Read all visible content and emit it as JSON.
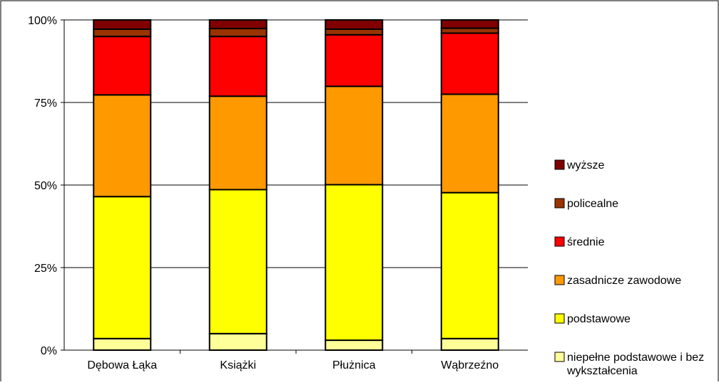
{
  "chart_data": {
    "type": "bar",
    "stacked": true,
    "percent": true,
    "categories": [
      "Dębowa Łąka",
      "Książki",
      "Płużnica",
      "Wąbrzeźno"
    ],
    "y_ticks": [
      "0%",
      "25%",
      "50%",
      "75%",
      "100%"
    ],
    "ylim": [
      0,
      100
    ],
    "grid": true,
    "legend_position": "right",
    "series": [
      {
        "name": "niepełne podstawowe i bez wykształcenia",
        "color": "#ffff99",
        "values": [
          3.5,
          5.0,
          3.0,
          3.5
        ]
      },
      {
        "name": "podstawowe",
        "color": "#ffff00",
        "values": [
          43.0,
          43.6,
          47.1,
          44.2
        ]
      },
      {
        "name": "zasadnicze zawodowe",
        "color": "#ff9900",
        "values": [
          30.8,
          28.3,
          29.8,
          29.8
        ]
      },
      {
        "name": "średnie",
        "color": "#ff0000",
        "values": [
          17.7,
          18.1,
          15.6,
          18.5
        ]
      },
      {
        "name": "policealne",
        "color": "#993300",
        "values": [
          2.2,
          2.4,
          1.7,
          1.5
        ]
      },
      {
        "name": "wyższe",
        "color": "#800000",
        "values": [
          2.8,
          2.6,
          2.8,
          2.5
        ]
      }
    ]
  }
}
